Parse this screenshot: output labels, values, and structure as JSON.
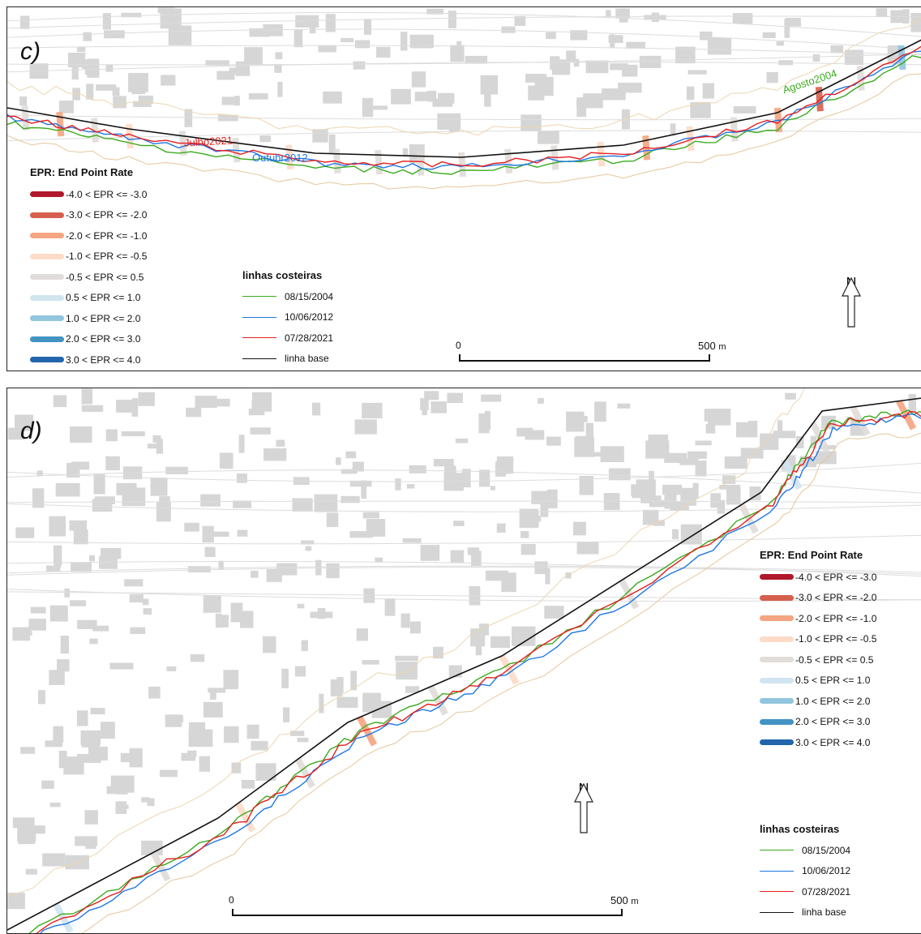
{
  "panels": {
    "c": {
      "letter": "c)"
    },
    "d": {
      "letter": "d)"
    }
  },
  "legend": {
    "title": "EPR: End Point Rate",
    "classes": [
      {
        "label": "-4.0 < EPR <= -3.0",
        "color": "#b2182b"
      },
      {
        "label": "-3.0 < EPR <= -2.0",
        "color": "#d6604d"
      },
      {
        "label": "-2.0 < EPR <= -1.0",
        "color": "#f4a582"
      },
      {
        "label": "-1.0 < EPR <= -0.5",
        "color": "#fddbc7"
      },
      {
        "label": "-0.5 < EPR <= 0.5",
        "color": "#e0dcda"
      },
      {
        "label": "0.5 < EPR <= 1.0",
        "color": "#d1e5f0"
      },
      {
        "label": "1.0 < EPR <= 2.0",
        "color": "#92c5de"
      },
      {
        "label": "2.0 < EPR <= 3.0",
        "color": "#4393c3"
      },
      {
        "label": "3.0 < EPR <= 4.0",
        "color": "#2166ac"
      }
    ]
  },
  "shorelines": {
    "title": "linhas costeiras",
    "items": [
      {
        "label": "08/15/2004",
        "color": "#3aaa1e"
      },
      {
        "label": "10/06/2012",
        "color": "#1e78e6"
      },
      {
        "label": "07/28/2021",
        "color": "#e61e1e"
      },
      {
        "label": "linha base",
        "color": "#111111"
      }
    ]
  },
  "scale": {
    "zero": "0",
    "end": "500",
    "unit": "m"
  },
  "north": {
    "letter": "N"
  },
  "map_labels": {
    "julho": "Julho2021",
    "outubro": "Outubr2012",
    "agosto": "Agosto2004"
  }
}
